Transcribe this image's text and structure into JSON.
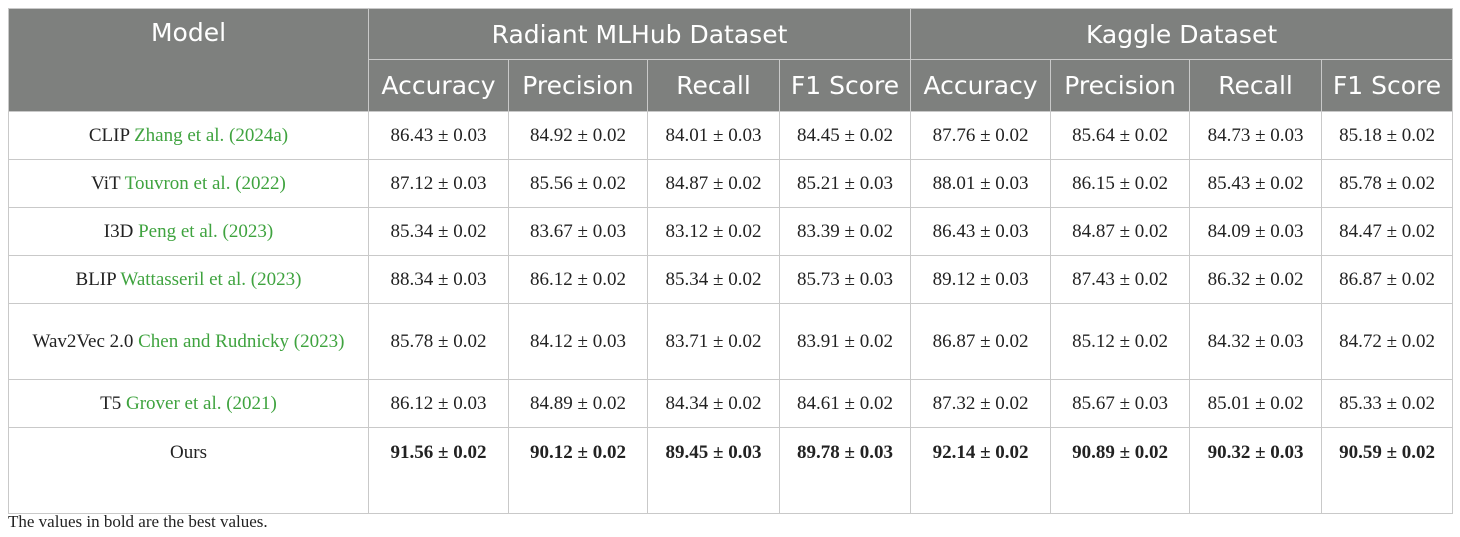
{
  "header": {
    "model": "Model",
    "group1": "Radiant MLHub Dataset",
    "group2": "Kaggle Dataset",
    "metrics": [
      "Accuracy",
      "Precision",
      "Recall",
      "F1 Score",
      "Accuracy",
      "Precision",
      "Recall",
      "F1 Score"
    ]
  },
  "rows": [
    {
      "model": "CLIP",
      "cite": "Zhang et al. (2024a)",
      "v": [
        "86.43 ± 0.03",
        "84.92 ± 0.02",
        "84.01 ± 0.03",
        "84.45 ± 0.02",
        "87.76 ± 0.02",
        "85.64 ± 0.02",
        "84.73 ± 0.03",
        "85.18 ± 0.02"
      ]
    },
    {
      "model": "ViT",
      "cite": "Touvron et al. (2022)",
      "v": [
        "87.12 ± 0.03",
        "85.56 ± 0.02",
        "84.87 ± 0.02",
        "85.21 ± 0.03",
        "88.01 ± 0.03",
        "86.15 ± 0.02",
        "85.43 ± 0.02",
        "85.78 ± 0.02"
      ]
    },
    {
      "model": "I3D",
      "cite": "Peng et al. (2023)",
      "v": [
        "85.34 ± 0.02",
        "83.67 ± 0.03",
        "83.12 ± 0.02",
        "83.39 ± 0.02",
        "86.43 ± 0.03",
        "84.87 ± 0.02",
        "84.09 ± 0.03",
        "84.47 ± 0.02"
      ]
    },
    {
      "model": "BLIP",
      "cite": "Wattasseril et al. (2023)",
      "v": [
        "88.34 ± 0.03",
        "86.12 ± 0.02",
        "85.34 ± 0.02",
        "85.73 ± 0.03",
        "89.12 ± 0.03",
        "87.43 ± 0.02",
        "86.32 ± 0.02",
        "86.87 ± 0.02"
      ]
    },
    {
      "model": "Wav2Vec 2.0",
      "cite": "Chen and Rudnicky (2023)",
      "v": [
        "85.78 ± 0.02",
        "84.12 ± 0.03",
        "83.71 ± 0.02",
        "83.91 ± 0.02",
        "86.87 ± 0.02",
        "85.12 ± 0.02",
        "84.32 ± 0.03",
        "84.72 ± 0.02"
      ]
    },
    {
      "model": "T5",
      "cite": "Grover et al. (2021)",
      "v": [
        "86.12 ± 0.03",
        "84.89 ± 0.02",
        "84.34 ± 0.02",
        "84.61 ± 0.02",
        "87.32 ± 0.02",
        "85.67 ± 0.03",
        "85.01 ± 0.02",
        "85.33 ± 0.02"
      ]
    },
    {
      "model": "Ours",
      "cite": "",
      "v": [
        "91.56 ± 0.02",
        "90.12 ± 0.02",
        "89.45 ± 0.03",
        "89.78 ± 0.03",
        "92.14 ± 0.02",
        "90.89 ± 0.02",
        "90.32 ± 0.03",
        "90.59 ± 0.02"
      ]
    }
  ],
  "note": "The values in bold are the best values."
}
